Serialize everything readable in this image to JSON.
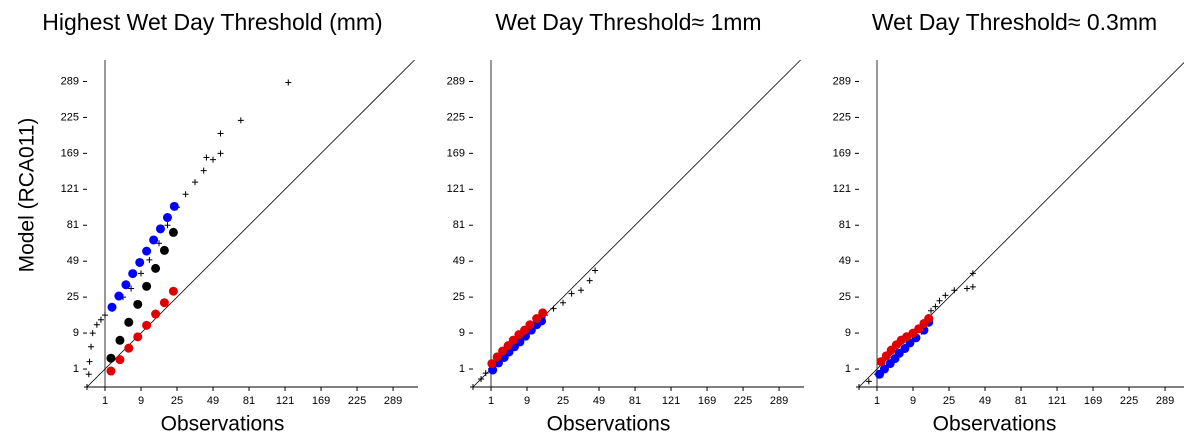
{
  "chart_data": [
    {
      "type": "scatter",
      "title": "Highest Wet Day Threshold (mm)",
      "x_label": "Observations",
      "y_label": "Model   (RCA011)",
      "scale": "sqrt",
      "xlim": [
        0,
        338
      ],
      "ylim": [
        0,
        331
      ],
      "xticks": [
        1,
        9,
        25,
        49,
        81,
        121,
        169,
        225,
        289
      ],
      "yticks": [
        1,
        9,
        25,
        49,
        81,
        121,
        169,
        225,
        289
      ],
      "vline": 1,
      "diagonal": true,
      "series": [
        {
          "marker": "plus",
          "color": "#000000",
          "x": [
            0,
            0.01,
            0.02,
            0.05,
            0.1,
            0.3,
            0.6,
            1,
            2,
            4,
            6,
            9,
            12,
            16,
            20,
            25,
            30,
            36,
            42,
            44,
            49,
            55,
            55,
            73,
            125
          ],
          "y": [
            0,
            0.5,
            2,
            5,
            9,
            12,
            14,
            16,
            19,
            25,
            30,
            40,
            50,
            64,
            81,
            100,
            115,
            130,
            145,
            163,
            160,
            169,
            199,
            220,
            287
          ]
        },
        {
          "marker": "circle",
          "color": "#0000ff",
          "x": [
            1.93,
            3.13,
            4.67,
            6.45,
            8.58,
            10.96,
            13.69,
            16.65,
            19.98,
            23.52
          ],
          "y": [
            19.71,
            25.6,
            32.38,
            39.82,
            48.02,
            57.15,
            66.91,
            77.44,
            88.92,
            101.0
          ]
        },
        {
          "marker": "circle",
          "color": "#000000",
          "x": [
            1.77,
            3.35,
            5.38,
            7.95,
            10.96,
            14.52,
            18.49,
            23.04
          ],
          "y": [
            2.56,
            6.76,
            12.96,
            21.16,
            31.36,
            43.56,
            57.76,
            73.96
          ]
        },
        {
          "marker": "circle",
          "color": "#e00000",
          "x": [
            1.77,
            3.35,
            5.38,
            7.95,
            10.96,
            14.52,
            18.49,
            23.04
          ],
          "y": [
            0.79,
            2.31,
            4.67,
            7.78,
            11.76,
            16.48,
            22.0,
            28.41
          ]
        }
      ]
    },
    {
      "type": "scatter",
      "title": "Wet Day Threshold≈ 1mm",
      "x_label": "Observations",
      "scale": "sqrt",
      "xlim": [
        0,
        338
      ],
      "ylim": [
        0,
        331
      ],
      "xticks": [
        1,
        9,
        25,
        49,
        81,
        121,
        169,
        225,
        289
      ],
      "yticks": [
        1,
        9,
        25,
        49,
        81,
        121,
        169,
        225,
        289
      ],
      "vline": 1,
      "diagonal": true,
      "series": [
        {
          "marker": "plus",
          "color": "#000000",
          "x": [
            0,
            0.2,
            0.5,
            1,
            2,
            4,
            6,
            9,
            12,
            16,
            20,
            25,
            30,
            36,
            42,
            46
          ],
          "y": [
            0,
            0.2,
            0.6,
            1,
            2.1,
            4,
            6.2,
            9,
            12.5,
            16,
            19,
            22,
            27,
            29,
            35,
            42
          ]
        },
        {
          "marker": "circle",
          "color": "#0000ff",
          "x": [
            1.2,
            2,
            3,
            4,
            5.3,
            6.8,
            8.5,
            10.5,
            12.5,
            14.5
          ],
          "y": [
            0.9,
            1.8,
            2.7,
            3.8,
            5,
            6.3,
            8,
            10,
            12,
            13.5
          ]
        },
        {
          "marker": "circle",
          "color": "#e00000",
          "x": [
            1.1,
            1.8,
            2.7,
            3.8,
            5,
            6.5,
            8.2,
            10,
            12.5,
            15
          ],
          "y": [
            1.7,
            2.8,
            4,
            5.3,
            6.8,
            8.5,
            10,
            12,
            14.5,
            17
          ]
        }
      ]
    },
    {
      "type": "scatter",
      "title": "Wet Day Threshold≈ 0.3mm",
      "x_label": "Observations",
      "scale": "sqrt",
      "xlim": [
        0,
        338
      ],
      "ylim": [
        0,
        331
      ],
      "xticks": [
        1,
        9,
        25,
        49,
        81,
        121,
        169,
        225,
        289
      ],
      "yticks": [
        1,
        9,
        25,
        49,
        81,
        121,
        169,
        225,
        289
      ],
      "vline": 1,
      "diagonal": true,
      "series": [
        {
          "marker": "plus",
          "color": "#000000",
          "x": [
            0,
            0.3,
            1,
            2,
            4,
            6,
            9,
            12,
            14,
            15,
            16,
            18,
            20,
            23,
            28,
            36,
            40,
            40
          ],
          "y": [
            0,
            0.1,
            0.5,
            1.2,
            2.6,
            4.3,
            7,
            9.5,
            12,
            15,
            18,
            20,
            23,
            26,
            29,
            30,
            31,
            40
          ]
        },
        {
          "marker": "circle",
          "color": "#0000ff",
          "x": [
            1.3,
            2,
            3,
            4,
            5,
            6.5,
            8,
            10,
            13,
            15
          ],
          "y": [
            0.5,
            1,
            1.7,
            2.5,
            3.5,
            4.6,
            6,
            7.5,
            10,
            13
          ]
        },
        {
          "marker": "circle",
          "color": "#e00000",
          "x": [
            1.5,
            2.3,
            3.2,
            4.3,
            5.5,
            7,
            9,
            11,
            13,
            15
          ],
          "y": [
            2,
            3,
            4.2,
            5.5,
            6.8,
            7.8,
            9,
            10.5,
            12.5,
            14.5
          ]
        }
      ]
    }
  ]
}
